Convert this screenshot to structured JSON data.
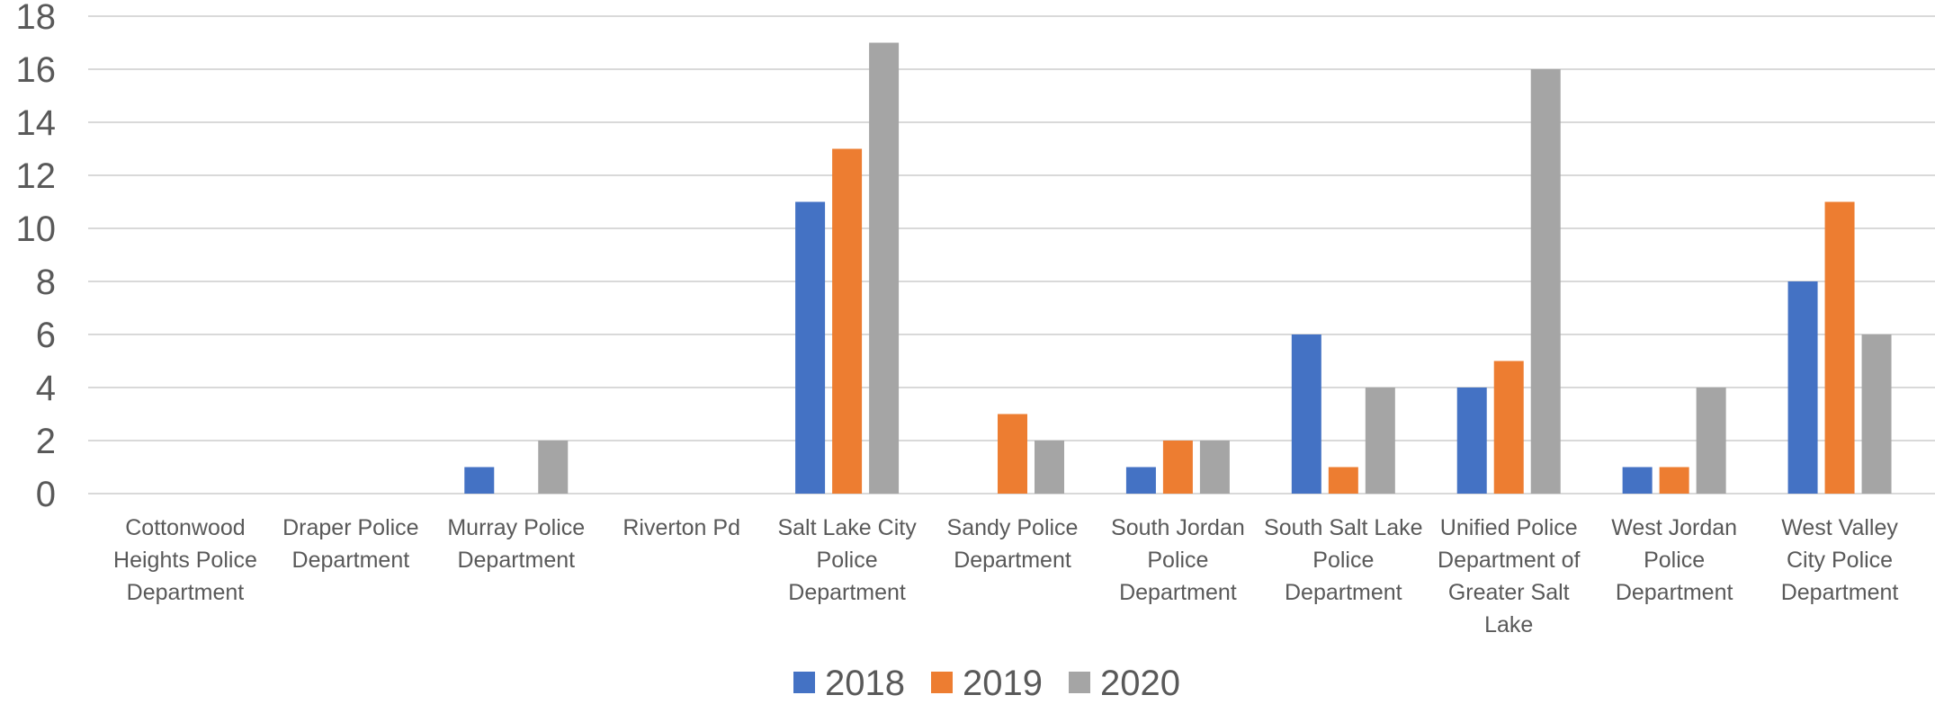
{
  "chart_data": {
    "type": "bar",
    "categories": [
      [
        "Cottonwood",
        "Heights Police",
        "Department"
      ],
      [
        "Draper Police",
        "Department"
      ],
      [
        "Murray Police",
        "Department"
      ],
      [
        "Riverton Pd"
      ],
      [
        "Salt Lake City",
        "Police",
        "Department"
      ],
      [
        "Sandy Police",
        "Department"
      ],
      [
        "South Jordan",
        "Police",
        "Department"
      ],
      [
        "South Salt Lake",
        "Police",
        "Department"
      ],
      [
        "Unified Police",
        "Department of",
        "Greater Salt",
        "Lake"
      ],
      [
        "West Jordan",
        "Police",
        "Department"
      ],
      [
        "West Valley",
        "City Police",
        "Department"
      ]
    ],
    "series": [
      {
        "name": "2018",
        "color": "#4472C4",
        "values": [
          0,
          0,
          1,
          0,
          11,
          0,
          1,
          6,
          4,
          1,
          8
        ]
      },
      {
        "name": "2019",
        "color": "#ED7D31",
        "values": [
          0,
          0,
          0,
          0,
          13,
          3,
          2,
          1,
          5,
          1,
          11
        ]
      },
      {
        "name": "2020",
        "color": "#A5A5A5",
        "values": [
          0,
          0,
          2,
          0,
          17,
          2,
          2,
          4,
          16,
          4,
          6
        ]
      }
    ],
    "ylim": [
      0,
      18
    ],
    "yticks": [
      "0",
      "2",
      "4",
      "6",
      "8",
      "10",
      "12",
      "14",
      "16",
      "18"
    ],
    "grid": true,
    "legend_position": "bottom",
    "gridline_color": "#D9D9D9",
    "text_color": "#595959"
  }
}
